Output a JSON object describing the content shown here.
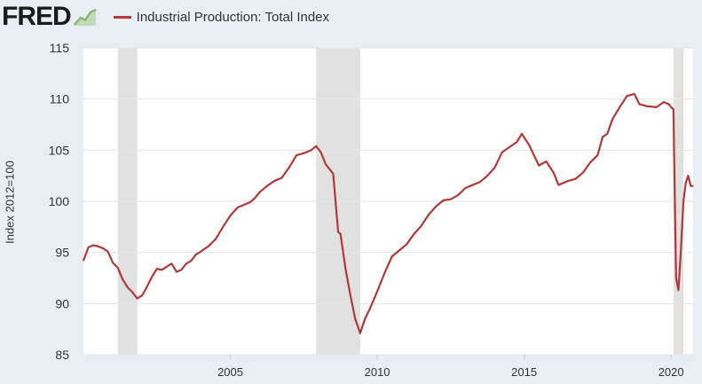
{
  "header": {
    "logo_text": "FRED",
    "legend_label": "Industrial Production: Total Index"
  },
  "colors": {
    "series": "#b2393a",
    "plot_bg": "#ffffff",
    "page_bg": "#e9eef4",
    "recession": "#e1e1e1",
    "grid": "#e6e6e6"
  },
  "chart_data": {
    "type": "line",
    "title": "",
    "xlabel": "",
    "ylabel": "Index 2012=100",
    "xlim": [
      2000.0,
      2020.75
    ],
    "ylim": [
      85,
      115
    ],
    "ytick_values": [
      85,
      90,
      95,
      100,
      105,
      110,
      115
    ],
    "xtick_values": [
      2005,
      2010,
      2015,
      2020
    ],
    "grid": true,
    "legend_position": "top-left",
    "recessions": [
      [
        2001.17,
        2001.83
      ],
      [
        2007.92,
        2009.42
      ],
      [
        2020.08,
        2020.42
      ]
    ],
    "series": [
      {
        "name": "Industrial Production: Total Index",
        "x": [
          2000.0,
          2000.17,
          2000.33,
          2000.5,
          2000.67,
          2000.83,
          2001.0,
          2001.17,
          2001.33,
          2001.5,
          2001.67,
          2001.83,
          2002.0,
          2002.17,
          2002.33,
          2002.5,
          2002.67,
          2002.83,
          2003.0,
          2003.17,
          2003.33,
          2003.5,
          2003.67,
          2003.83,
          2004.0,
          2004.25,
          2004.5,
          2004.75,
          2005.0,
          2005.25,
          2005.5,
          2005.67,
          2005.83,
          2006.0,
          2006.25,
          2006.5,
          2006.75,
          2007.0,
          2007.25,
          2007.5,
          2007.75,
          2007.92,
          2008.08,
          2008.25,
          2008.5,
          2008.67,
          2008.75,
          2008.83,
          2008.92,
          2009.08,
          2009.25,
          2009.42,
          2009.58,
          2009.75,
          2010.0,
          2010.25,
          2010.5,
          2010.75,
          2011.0,
          2011.25,
          2011.5,
          2011.75,
          2012.0,
          2012.25,
          2012.5,
          2012.75,
          2013.0,
          2013.25,
          2013.5,
          2013.75,
          2014.0,
          2014.25,
          2014.5,
          2014.75,
          2014.92,
          2015.17,
          2015.5,
          2015.75,
          2016.0,
          2016.17,
          2016.5,
          2016.75,
          2017.0,
          2017.25,
          2017.5,
          2017.67,
          2017.83,
          2018.0,
          2018.25,
          2018.5,
          2018.75,
          2018.92,
          2019.17,
          2019.5,
          2019.75,
          2019.92,
          2020.0,
          2020.08,
          2020.17,
          2020.25,
          2020.33,
          2020.42,
          2020.5,
          2020.58,
          2020.67,
          2020.75
        ],
        "values": [
          94.2,
          95.5,
          95.7,
          95.6,
          95.4,
          95.1,
          94.0,
          93.5,
          92.4,
          91.6,
          91.1,
          90.5,
          90.8,
          91.7,
          92.6,
          93.4,
          93.3,
          93.6,
          93.9,
          93.1,
          93.3,
          93.9,
          94.2,
          94.8,
          95.1,
          95.6,
          96.3,
          97.5,
          98.6,
          99.4,
          99.7,
          99.9,
          100.3,
          100.9,
          101.5,
          102.0,
          102.3,
          103.3,
          104.5,
          104.7,
          105.0,
          105.4,
          104.8,
          103.6,
          102.7,
          97.0,
          96.8,
          95.2,
          93.4,
          90.9,
          88.5,
          87.1,
          88.5,
          89.5,
          91.2,
          93.0,
          94.6,
          95.2,
          95.8,
          96.8,
          97.6,
          98.7,
          99.5,
          100.1,
          100.2,
          100.6,
          101.3,
          101.6,
          101.9,
          102.5,
          103.3,
          104.8,
          105.3,
          105.8,
          106.6,
          105.5,
          103.5,
          103.9,
          102.8,
          101.6,
          102.0,
          102.2,
          102.8,
          103.8,
          104.5,
          106.3,
          106.6,
          108.0,
          109.2,
          110.3,
          110.5,
          109.5,
          109.3,
          109.2,
          109.7,
          109.5,
          109.2,
          109.0,
          92.5,
          91.3,
          95.0,
          100.0,
          101.8,
          102.5,
          101.5,
          101.5
        ]
      }
    ]
  }
}
